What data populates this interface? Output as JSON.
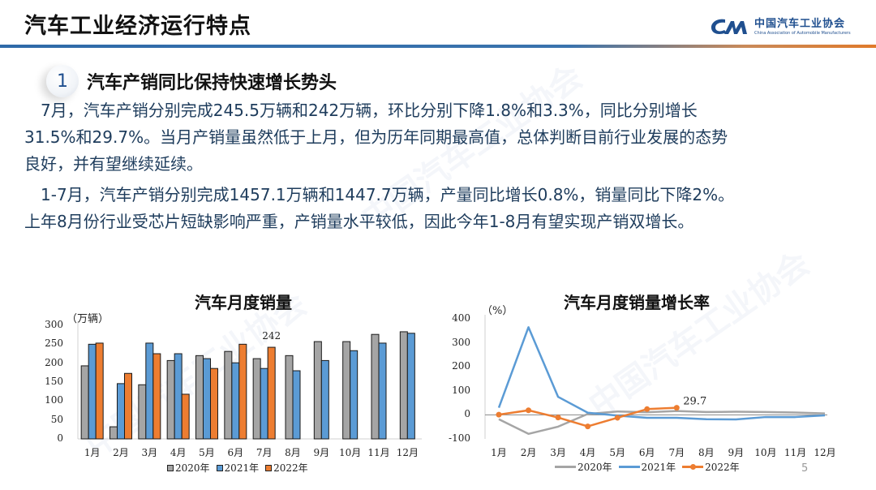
{
  "header": {
    "title": "汽车工业经济运行特点",
    "logo_cn": "中国汽车工业协会",
    "logo_en": "China Association of Automobile Manufacturers",
    "logo_mark": "CAAM"
  },
  "section": {
    "number": "1",
    "title": "汽车产销同比保持快速增长势头"
  },
  "paragraphs": [
    "　7月，汽车产销分别完成245.5万辆和242万辆，环比分别下降1.8%和3.3%，同比分别增长",
    "31.5%和29.7%。当月产销量虽然低于上月，但为历年同期最高值，总体判断目前行业发展的态势",
    "良好，并有望继续延续。",
    "　1-7月，汽车产销分别完成1457.1万辆和1447.7万辆，产量同比增长0.8%，销量同比下降2%。",
    "上年8月份行业受芯片短缺影响严重，产销量水平较低，因此今年1-8月有望实现产销双增长。"
  ],
  "page_number": "5",
  "colors": {
    "series_2020": "#a5a5a5",
    "series_2021": "#5b9bd5",
    "series_2022": "#ed7d31",
    "header_line_blue": "#2e6aa8",
    "header_line_orange": "#e07a2a",
    "text_blue": "#1e3c5c"
  },
  "chart_data": [
    {
      "type": "bar",
      "title": "汽车月度销量",
      "ylabel": "（万辆）",
      "xlabel": "",
      "ylim": [
        0,
        300
      ],
      "yticks": [
        0,
        50,
        100,
        150,
        200,
        250,
        300
      ],
      "categories": [
        "1月",
        "2月",
        "3月",
        "4月",
        "5月",
        "6月",
        "7月",
        "8月",
        "9月",
        "10月",
        "11月",
        "12月"
      ],
      "series": [
        {
          "name": "2020年",
          "values": [
            193,
            32,
            143,
            207,
            220,
            231,
            212,
            220,
            257,
            257,
            276,
            283
          ]
        },
        {
          "name": "2021年",
          "values": [
            250,
            146,
            253,
            225,
            212,
            201,
            186,
            180,
            207,
            233,
            253,
            279
          ]
        },
        {
          "name": "2022年",
          "values": [
            253,
            173,
            225,
            118,
            186,
            250,
            242,
            null,
            null,
            null,
            null,
            null
          ]
        }
      ],
      "annotations": [
        {
          "category": "7月",
          "series": "2022年",
          "text": "242"
        }
      ],
      "legend_position": "bottom",
      "grid": false
    },
    {
      "type": "line",
      "title": "汽车月度销量增长率",
      "ylabel": "（%）",
      "xlabel": "",
      "ylim": [
        -100,
        400
      ],
      "yticks": [
        -100,
        0,
        100,
        200,
        300,
        400
      ],
      "categories": [
        "1月",
        "2月",
        "3月",
        "4月",
        "5月",
        "6月",
        "7月",
        "8月",
        "9月",
        "10月",
        "11月",
        "12月"
      ],
      "series": [
        {
          "name": "2020年",
          "values": [
            -18,
            -79,
            -49,
            4,
            14,
            11,
            16,
            12,
            13,
            12,
            10,
            6
          ]
        },
        {
          "name": "2021年",
          "values": [
            30,
            365,
            75,
            9,
            -3,
            -12,
            -12,
            -18,
            -19,
            -9,
            -9,
            -2
          ]
        },
        {
          "name": "2022年",
          "values": [
            1,
            19,
            -11,
            -48,
            -12,
            24,
            29.7,
            null,
            null,
            null,
            null,
            null
          ]
        }
      ],
      "annotations": [
        {
          "category": "7月",
          "series": "2022年",
          "text": "29.7"
        }
      ],
      "legend_position": "bottom",
      "grid": false
    }
  ]
}
